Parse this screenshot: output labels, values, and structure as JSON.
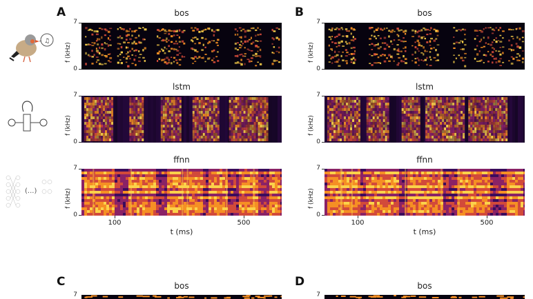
{
  "panels": {
    "A": {
      "letter": "A"
    },
    "B": {
      "letter": "B"
    },
    "C": {
      "letter": "C"
    },
    "D": {
      "letter": "D"
    }
  },
  "row_titles": {
    "bos": "bos",
    "lstm": "lstm",
    "ffnn": "ffnn"
  },
  "axis": {
    "ylabel": "f (kHz)",
    "ytick_top": "7",
    "ytick_bottom": "0",
    "xlabel": "t (ms)",
    "xtick_100": "100",
    "xtick_500": "500"
  },
  "icons": {
    "bird": "zebra-finch-bird-icon",
    "lstm": "lstm-recurrent-cell-icon",
    "ffnn": "feedforward-network-icon"
  },
  "ffnn_icon_text": "(...)",
  "colormap": [
    "#07030f",
    "#3b0c5c",
    "#8a2266",
    "#d24a3a",
    "#f58f24",
    "#fbd24a"
  ],
  "chart_data": {
    "type": "heatmap",
    "title": "",
    "panels": [
      "A",
      "B",
      "C",
      "D"
    ],
    "rows": [
      "bos",
      "lstm",
      "ffnn"
    ],
    "ylabel": "f (kHz)",
    "ylim": [
      0,
      7
    ],
    "xlabel": "t (ms)",
    "xticks": [
      100,
      500
    ]
  }
}
